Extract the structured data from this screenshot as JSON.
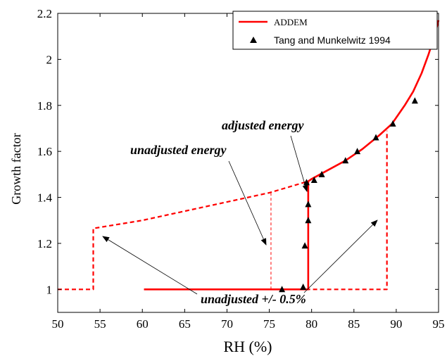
{
  "chart_data": {
    "type": "line",
    "xlabel": "RH (%)",
    "ylabel": "Growth factor",
    "xlim": [
      50,
      95
    ],
    "ylim": [
      0.9,
      2.2
    ],
    "xticks": [
      50,
      55,
      60,
      65,
      70,
      75,
      80,
      85,
      90,
      95
    ],
    "yticks": [
      1,
      1.2,
      1.4,
      1.6,
      1.8,
      2,
      2.2
    ],
    "xtick_labels": [
      "50",
      "55",
      "60",
      "65",
      "70",
      "75",
      "80",
      "85",
      "90",
      "95"
    ],
    "ytick_labels": [
      "1",
      "1.2",
      "1.4",
      "1.6",
      "1.8",
      "2",
      "2.2"
    ],
    "grid": false,
    "legend_position": "top-right",
    "colors": {
      "model": "#ff0000",
      "markers": "#000000"
    },
    "series": [
      {
        "name": "ADDEM",
        "style": "solid",
        "x": [
          60.2,
          79.6,
          79.6,
          80,
          82,
          84,
          86,
          88,
          89.5,
          91,
          92,
          93,
          93.8,
          94.5,
          95
        ],
        "y": [
          1.0,
          1.0,
          1.47,
          1.48,
          1.52,
          1.56,
          1.61,
          1.67,
          1.72,
          1.8,
          1.86,
          1.94,
          2.02,
          2.1,
          2.17
        ]
      },
      {
        "name": "unadjusted +/- 0.5% (lower)",
        "style": "dashed",
        "x": [
          50,
          54.2,
          54.2,
          60,
          65,
          70,
          75,
          79.6
        ],
        "y": [
          1.0,
          1.0,
          1.265,
          1.3,
          1.34,
          1.38,
          1.42,
          1.47
        ]
      },
      {
        "name": "unadjusted +/- 0.5% (upper)",
        "style": "dashed",
        "x": [
          60.2,
          88.9,
          88.9
        ],
        "y": [
          1.0,
          1.0,
          1.69
        ]
      },
      {
        "name": "unadjusted energy",
        "style": "thin-dashed",
        "x": [
          75.2,
          75.2
        ],
        "y": [
          1.0,
          1.42
        ]
      },
      {
        "name": "Tang and Munkelwitz 1994",
        "style": "markers",
        "x": [
          76.5,
          79.0,
          79.2,
          79.6,
          79.6,
          79.4,
          80.3,
          81.2,
          84.0,
          85.4,
          87.6,
          89.6,
          92.2
        ],
        "y": [
          1.0,
          1.01,
          1.19,
          1.3,
          1.37,
          1.465,
          1.475,
          1.5,
          1.56,
          1.6,
          1.66,
          1.72,
          1.82
        ]
      }
    ],
    "legend": [
      {
        "label": "ADDEM",
        "kind": "line"
      },
      {
        "label": "Tang and Munkelwitz 1994",
        "kind": "marker"
      }
    ],
    "annotations": [
      {
        "text": "adjusted energy"
      },
      {
        "text": "unadjusted energy"
      },
      {
        "text": "unadjusted +/- 0.5%"
      }
    ]
  }
}
